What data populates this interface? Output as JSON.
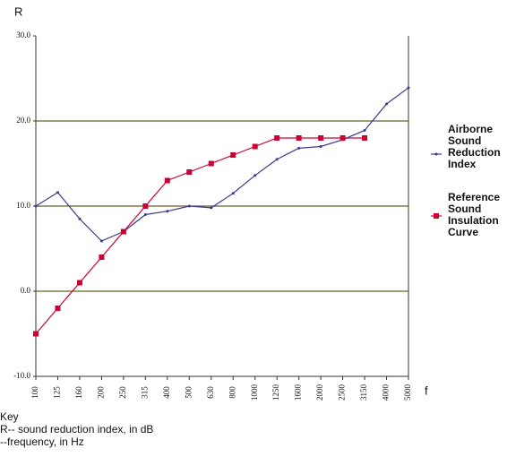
{
  "chart_data": {
    "type": "line",
    "y_label": "R",
    "x_label": "f",
    "categories": [
      "100",
      "125",
      "160",
      "200",
      "250",
      "315",
      "400",
      "500",
      "630",
      "800",
      "1000",
      "1250",
      "1600",
      "2000",
      "2500",
      "3150",
      "4000",
      "5000"
    ],
    "series": [
      {
        "name": "Airborne Sound Reduction Index",
        "color": "#3a3a8c",
        "marker": "dot",
        "values": [
          10.0,
          11.6,
          8.5,
          5.9,
          7.0,
          9.0,
          9.4,
          10.0,
          9.8,
          11.5,
          13.6,
          15.5,
          16.8,
          17.0,
          17.8,
          18.9,
          22.0,
          23.9
        ]
      },
      {
        "name": "Reference Sound Insulation Curve",
        "color": "#cc0033",
        "marker": "square",
        "values": [
          -5,
          -2,
          1,
          4,
          7,
          10,
          13,
          14,
          15,
          16,
          17,
          18,
          18,
          18,
          18,
          18,
          null,
          null
        ]
      }
    ],
    "ylim": [
      -10,
      30
    ],
    "yticks": [
      {
        "value": -10,
        "label": "-10.0"
      },
      {
        "value": 0,
        "label": "0.0"
      },
      {
        "value": 10,
        "label": "10.0"
      },
      {
        "value": 20,
        "label": "20.0"
      },
      {
        "value": 30,
        "label": "30.0"
      }
    ],
    "grid": true,
    "grid_color": "#6b5a2a",
    "key": {
      "title": "Key",
      "lines": [
        "R-- sound reduction index, in dB",
        "--frequency, in Hz"
      ]
    }
  }
}
